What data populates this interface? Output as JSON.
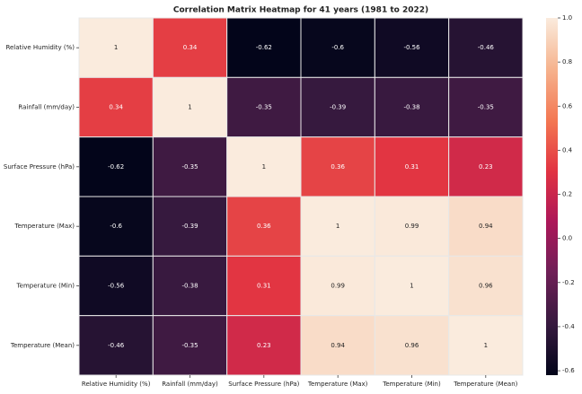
{
  "chart_data": {
    "type": "heatmap",
    "title": "Correlation Matrix Heatmap for 41 years (1981 to 2022)",
    "categories": [
      "Relative Humidity (%)",
      "Rainfall (mm/day)",
      "Surface Pressure (hPa)",
      "Temperature (Max)",
      "Temperature (Min)",
      "Temperature (Mean)"
    ],
    "values": [
      [
        1,
        0.34,
        -0.62,
        -0.6,
        -0.56,
        -0.46
      ],
      [
        0.34,
        1,
        -0.35,
        -0.39,
        -0.38,
        -0.35
      ],
      [
        -0.62,
        -0.35,
        1,
        0.36,
        0.31,
        0.23
      ],
      [
        -0.6,
        -0.39,
        0.36,
        1,
        0.99,
        0.94
      ],
      [
        -0.56,
        -0.38,
        0.31,
        0.99,
        1,
        0.96
      ],
      [
        -0.46,
        -0.35,
        0.23,
        0.94,
        0.96,
        1
      ]
    ],
    "colormap": "rocket",
    "clim": [
      -0.62,
      1
    ],
    "cticks": [
      -0.6,
      -0.4,
      -0.2,
      {
        "value": 0,
        "label": "0.0"
      },
      0.2,
      0.4,
      0.6,
      0.8,
      {
        "value": 1,
        "label": "1.0"
      }
    ]
  }
}
